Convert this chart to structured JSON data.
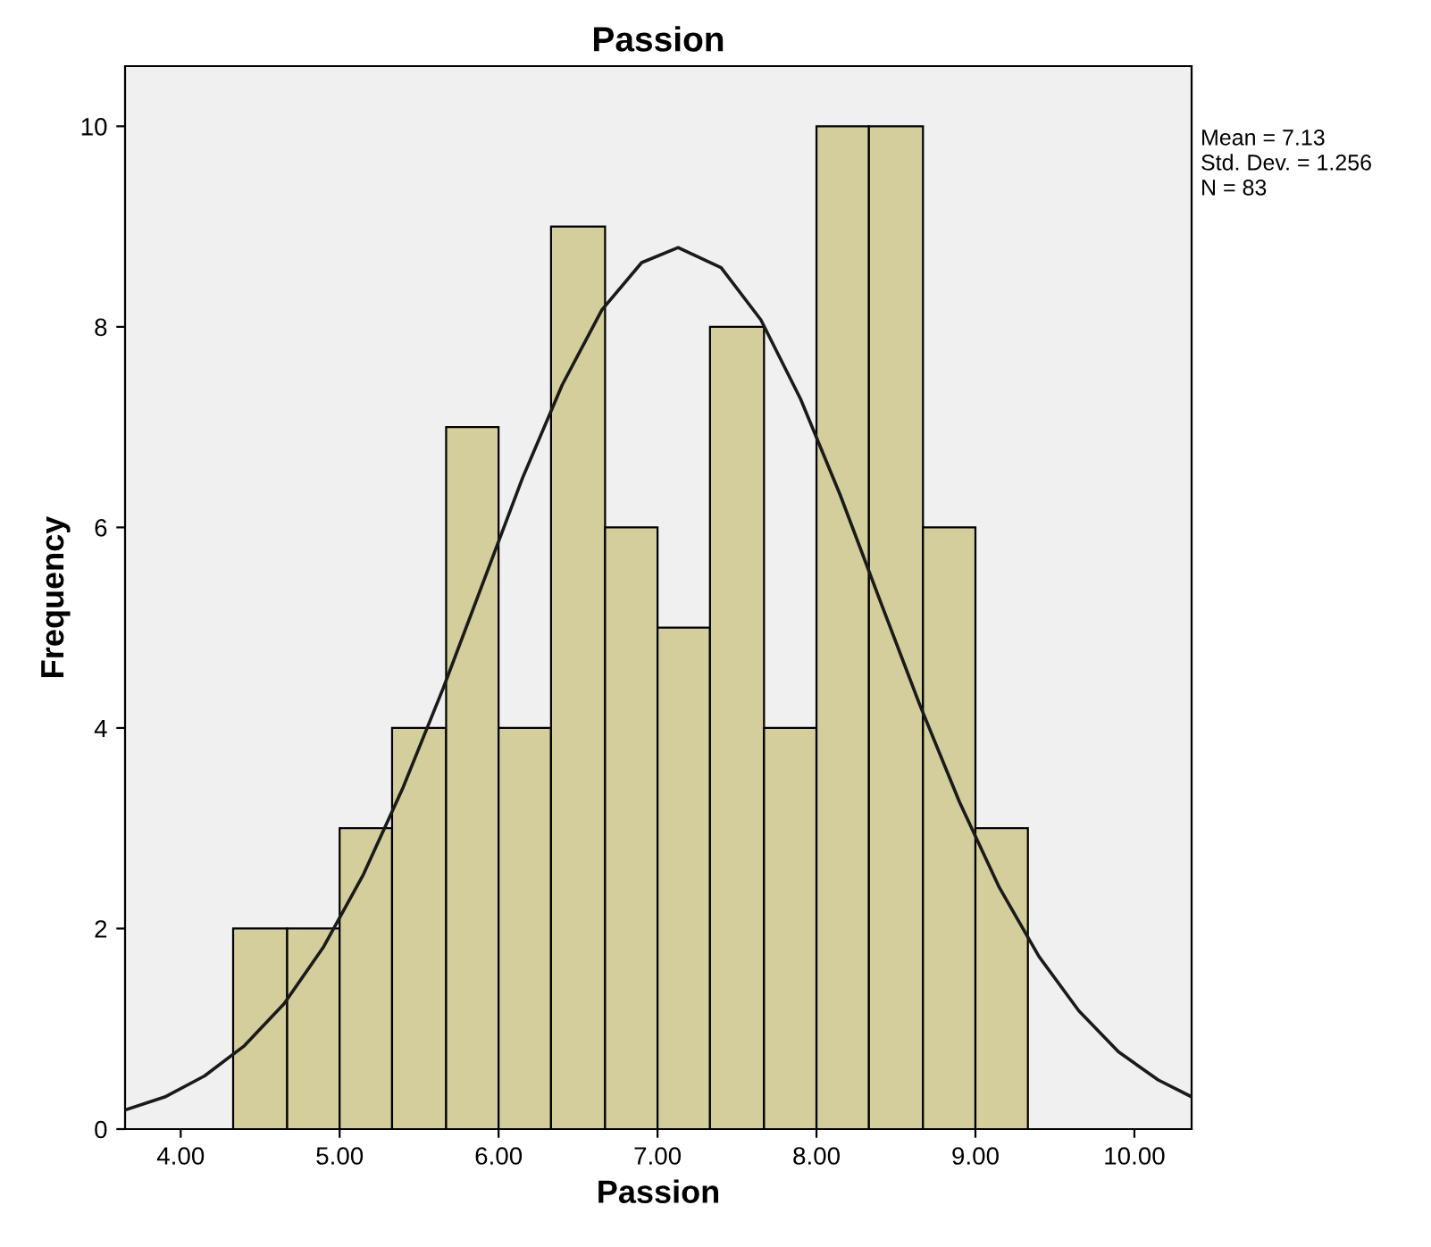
{
  "chart_data": {
    "type": "histogram",
    "title": "Passion",
    "xlabel": "Passion",
    "ylabel": "Frequency",
    "bins": [
      4.33,
      4.67,
      5.0,
      5.33,
      5.67,
      6.0,
      6.33,
      6.67,
      7.0,
      7.33,
      7.67,
      8.0,
      8.33,
      8.67,
      9.0,
      9.33
    ],
    "values": [
      2,
      2,
      3,
      4,
      7,
      4,
      9,
      6,
      5,
      8,
      4,
      10,
      10,
      6,
      3
    ],
    "color": "#d3ce9b",
    "series": [
      {
        "type": "line",
        "color": "#1a1a1a",
        "x": [
          3.65,
          3.9,
          4.15,
          4.4,
          4.65,
          4.9,
          5.15,
          5.4,
          5.65,
          5.9,
          6.15,
          6.4,
          6.65,
          6.9,
          7.13,
          7.4,
          7.65,
          7.9,
          8.15,
          8.4,
          8.65,
          8.9,
          9.15,
          9.4,
          9.65,
          9.9,
          10.15,
          10.35
        ],
        "values": [
          0.19,
          0.32,
          0.53,
          0.83,
          1.25,
          1.82,
          2.54,
          3.41,
          4.39,
          5.44,
          6.49,
          7.42,
          8.17,
          8.64,
          8.79,
          8.59,
          8.07,
          7.28,
          6.32,
          5.27,
          4.23,
          3.26,
          2.41,
          1.72,
          1.18,
          0.77,
          0.49,
          0.33
        ]
      }
    ],
    "xlim": [
      3.65,
      10.36
    ],
    "ylim": [
      0,
      10.6
    ],
    "xticks": [
      {
        "value": 4,
        "label": "4.00"
      },
      {
        "value": 5,
        "label": "5.00"
      },
      {
        "value": 6,
        "label": "6.00"
      },
      {
        "value": 7,
        "label": "7.00"
      },
      {
        "value": 8,
        "label": "8.00"
      },
      {
        "value": 9,
        "label": "9.00"
      },
      {
        "value": 10,
        "label": "10.00"
      }
    ],
    "yticks": [
      0,
      2,
      4,
      6,
      8,
      10
    ],
    "annotations": [
      "Mean = 7.13",
      "Std. Dev. = 1.256",
      "N = 83"
    ],
    "grid": false,
    "legend": false
  }
}
